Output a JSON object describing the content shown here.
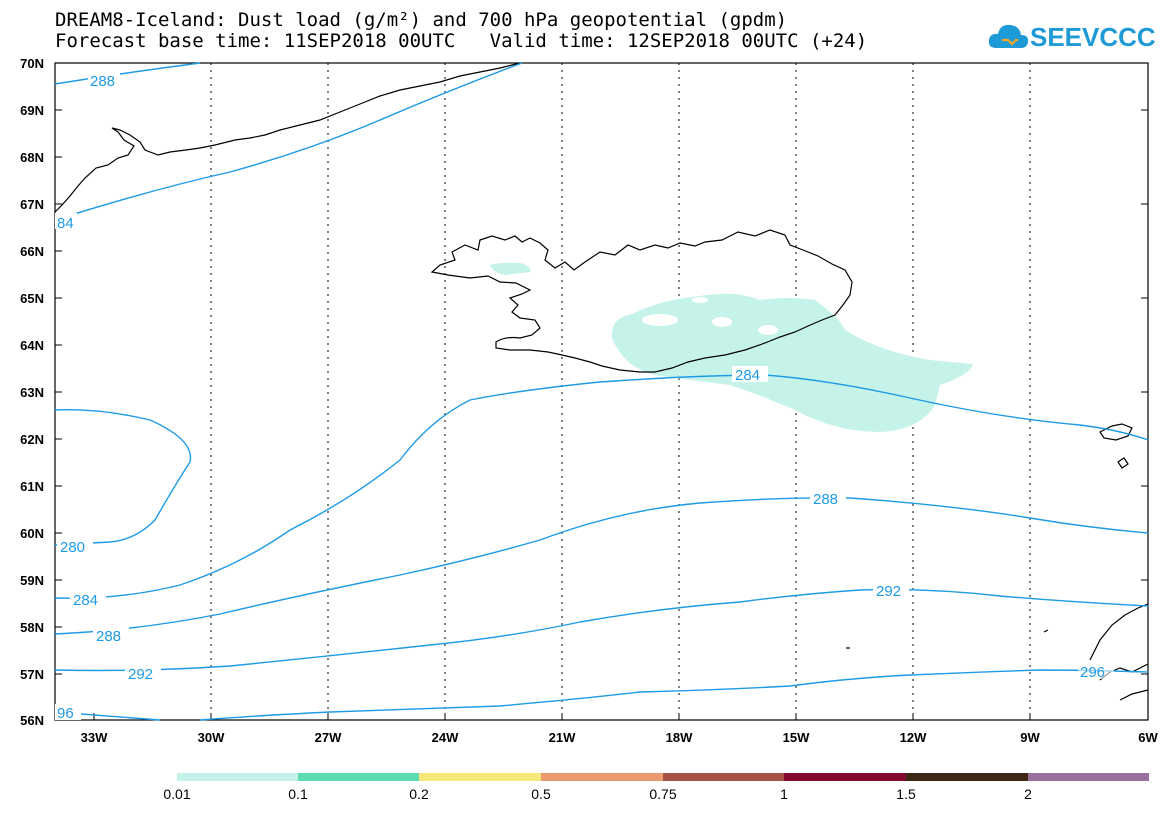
{
  "title": {
    "line1": "DREAM8-Iceland: Dust load (g/m²) and 700 hPa geopotential (gpdm)",
    "line2": "Forecast base time: 11SEP2018 00UTC   Valid time: 12SEP2018 00UTC (+24)"
  },
  "logo": {
    "text": "SEEVCCC",
    "icon": "cloud-icon"
  },
  "axes": {
    "lat_labels": [
      "70N",
      "69N",
      "68N",
      "67N",
      "66N",
      "65N",
      "64N",
      "63N",
      "62N",
      "61N",
      "60N",
      "59N",
      "58N",
      "57N",
      "56N"
    ],
    "lon_labels": [
      "33W",
      "30W",
      "27W",
      "24W",
      "21W",
      "18W",
      "15W",
      "12W",
      "9W",
      "6W"
    ]
  },
  "contours": {
    "color": "#1e9be6",
    "labels": [
      "288",
      "84",
      "280",
      "284",
      "288",
      "292",
      "96",
      "284",
      "288",
      "292",
      "296"
    ]
  },
  "colorbar": {
    "colors": [
      "#c5f3ea",
      "#5cdcb0",
      "#f5e87a",
      "#ea9b6f",
      "#a85048",
      "#820a2e",
      "#3c2814",
      "#98709c"
    ],
    "tick_labels": [
      "0.01",
      "0.1",
      "0.2",
      "0.5",
      "0.75",
      "1",
      "1.5",
      "2"
    ]
  }
}
